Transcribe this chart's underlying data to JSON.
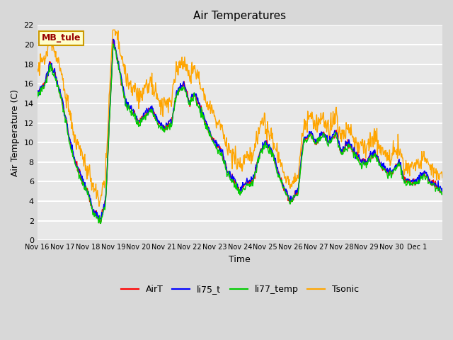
{
  "title": "Air Temperatures",
  "xlabel": "Time",
  "ylabel": "Air Temperature (C)",
  "ylim": [
    0,
    22
  ],
  "yticks": [
    0,
    2,
    4,
    6,
    8,
    10,
    12,
    14,
    16,
    18,
    20,
    22
  ],
  "x_labels": [
    "Nov 16",
    "Nov 17",
    "Nov 18",
    "Nov 19",
    "Nov 20",
    "Nov 21",
    "Nov 22",
    "Nov 23",
    "Nov 24",
    "Nov 25",
    "Nov 26",
    "Nov 27",
    "Nov 28",
    "Nov 29",
    "Nov 30",
    "Dec 1"
  ],
  "series": {
    "AirT": {
      "color": "#ff0000",
      "lw": 1.0
    },
    "li75_t": {
      "color": "#0000ff",
      "lw": 1.0
    },
    "li77_temp": {
      "color": "#00cc00",
      "lw": 1.0
    },
    "Tsonic": {
      "color": "#ffa500",
      "lw": 1.0
    }
  },
  "fig_bg_color": "#d8d8d8",
  "ax_bg_color": "#e8e8e8",
  "grid_color": "#ffffff",
  "annotation_text": "MB_tule",
  "annotation_bg": "#ffffcc",
  "annotation_border": "#cc9900",
  "annotation_text_color": "#990000",
  "title_fontsize": 11
}
